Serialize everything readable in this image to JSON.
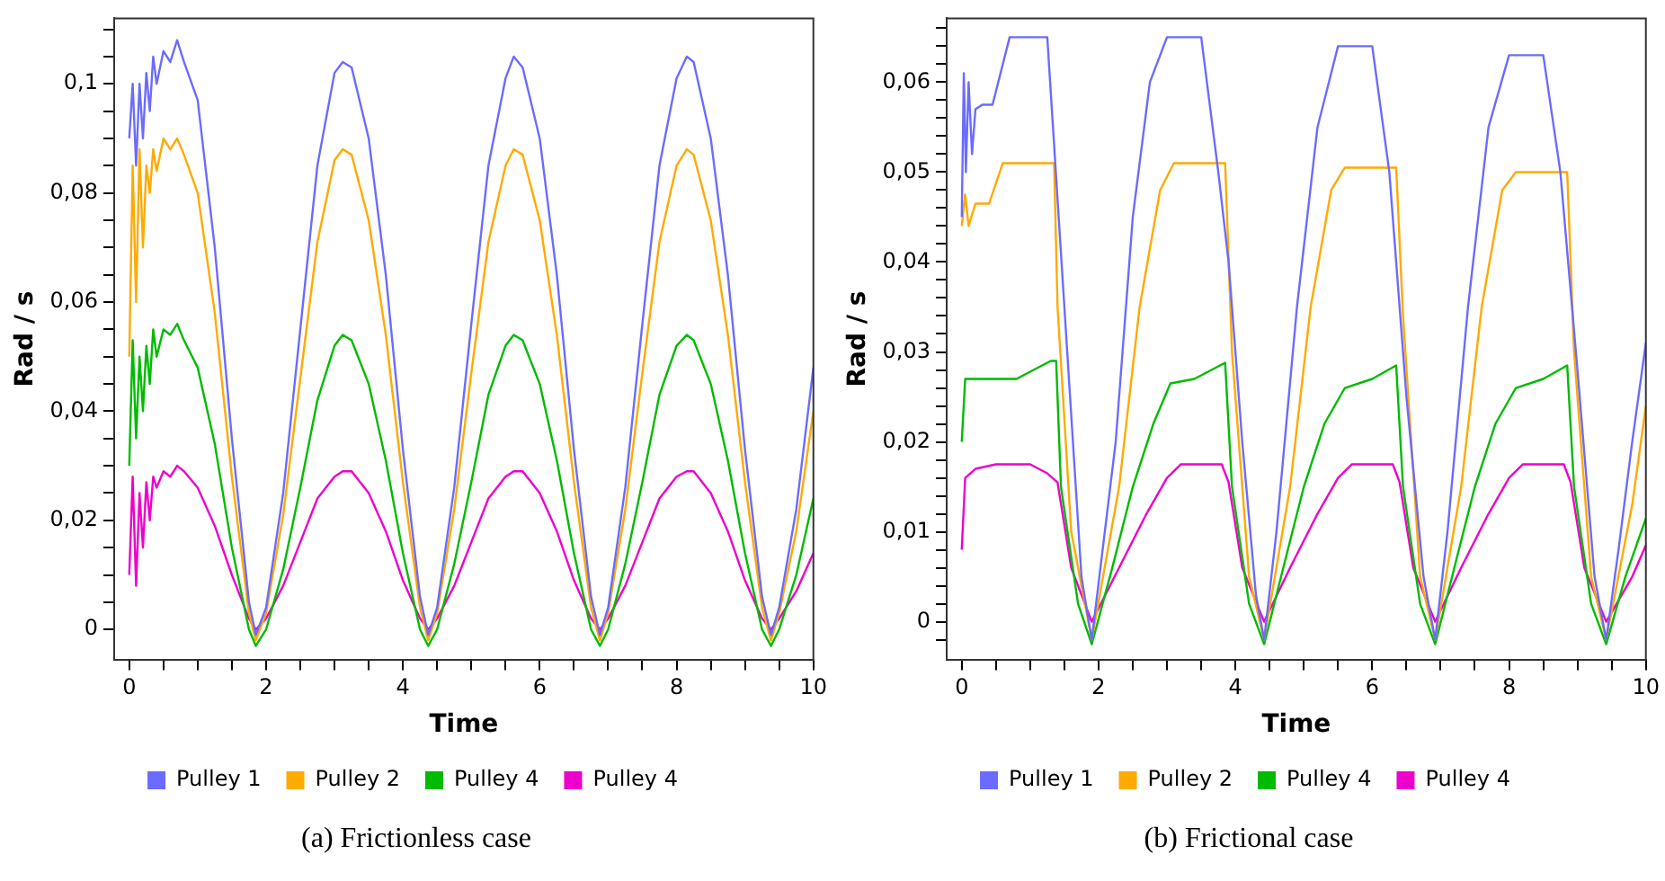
{
  "chart_data": [
    {
      "type": "line",
      "title": "(a) Frictionless case",
      "xlabel": "Time",
      "ylabel": "Rad / s",
      "legend": "bottom",
      "grid": false,
      "marker": "none",
      "line_style": "solid",
      "xlim": [
        -0.22,
        10
      ],
      "ylim": [
        -0.0055,
        0.112
      ],
      "xticks": [
        0,
        {
          "value": 0.5,
          "label": null
        },
        {
          "value": 1,
          "label": null
        },
        {
          "value": 1.5,
          "label": null
        },
        2,
        {
          "value": 2.5,
          "label": null
        },
        {
          "value": 3,
          "label": null
        },
        {
          "value": 3.5,
          "label": null
        },
        4,
        {
          "value": 4.5,
          "label": null
        },
        {
          "value": 5,
          "label": null
        },
        {
          "value": 5.5,
          "label": null
        },
        6,
        {
          "value": 6.5,
          "label": null
        },
        {
          "value": 7,
          "label": null
        },
        {
          "value": 7.5,
          "label": null
        },
        8,
        {
          "value": 8.5,
          "label": null
        },
        {
          "value": 9,
          "label": null
        },
        {
          "value": 9.5,
          "label": null
        },
        10
      ],
      "yticks": [
        {
          "value": 0,
          "label": "0"
        },
        {
          "value": 0.005,
          "label": null
        },
        {
          "value": 0.01,
          "label": null
        },
        {
          "value": 0.015,
          "label": null
        },
        {
          "value": 0.02,
          "label": "0,02"
        },
        {
          "value": 0.025,
          "label": null
        },
        {
          "value": 0.03,
          "label": null
        },
        {
          "value": 0.035,
          "label": null
        },
        {
          "value": 0.04,
          "label": "0,04"
        },
        {
          "value": 0.045,
          "label": null
        },
        {
          "value": 0.05,
          "label": null
        },
        {
          "value": 0.055,
          "label": null
        },
        {
          "value": 0.06,
          "label": "0,06"
        },
        {
          "value": 0.065,
          "label": null
        },
        {
          "value": 0.07,
          "label": null
        },
        {
          "value": 0.075,
          "label": null
        },
        {
          "value": 0.08,
          "label": "0,08"
        },
        {
          "value": 0.085,
          "label": null
        },
        {
          "value": 0.09,
          "label": null
        },
        {
          "value": 0.095,
          "label": null
        },
        {
          "value": 0.1,
          "label": "0,1"
        },
        {
          "value": 0.105,
          "label": null
        },
        {
          "value": 0.11,
          "label": null
        }
      ],
      "series": [
        {
          "name": "Pulley 1",
          "color": "#6b6bff",
          "x": [
            0,
            0.05,
            0.1,
            0.15,
            0.2,
            0.25,
            0.3,
            0.35,
            0.4,
            0.5,
            0.6,
            0.7,
            0.8,
            1.0,
            1.25,
            1.5,
            1.75,
            1.85,
            2.0,
            2.25,
            2.5,
            2.75,
            3.0,
            3.12,
            3.25,
            3.5,
            3.75,
            4.0,
            4.25,
            4.37,
            4.5,
            4.75,
            5.0,
            5.25,
            5.5,
            5.62,
            5.75,
            6.0,
            6.25,
            6.5,
            6.75,
            6.88,
            7.0,
            7.25,
            7.5,
            7.75,
            8.0,
            8.15,
            8.25,
            8.5,
            8.75,
            9.0,
            9.25,
            9.38,
            9.5,
            9.75,
            10
          ],
          "values": [
            0.09,
            0.1,
            0.085,
            0.1,
            0.09,
            0.102,
            0.095,
            0.105,
            0.1,
            0.106,
            0.104,
            0.108,
            0.104,
            0.097,
            0.07,
            0.035,
            0.005,
            -0.001,
            0.004,
            0.025,
            0.055,
            0.085,
            0.102,
            0.104,
            0.103,
            0.09,
            0.065,
            0.033,
            0.006,
            -0.001,
            0.004,
            0.026,
            0.056,
            0.085,
            0.101,
            0.105,
            0.103,
            0.09,
            0.065,
            0.033,
            0.006,
            -0.001,
            0.004,
            0.026,
            0.056,
            0.085,
            0.101,
            0.105,
            0.104,
            0.09,
            0.065,
            0.033,
            0.006,
            -0.001,
            0.004,
            0.022,
            0.048
          ]
        },
        {
          "name": "Pulley 2",
          "color": "#ffaa00",
          "x": [
            0,
            0.05,
            0.1,
            0.15,
            0.2,
            0.25,
            0.3,
            0.35,
            0.4,
            0.5,
            0.6,
            0.7,
            0.8,
            1.0,
            1.25,
            1.5,
            1.75,
            1.85,
            2.0,
            2.25,
            2.5,
            2.75,
            3.0,
            3.12,
            3.25,
            3.5,
            3.75,
            4.0,
            4.25,
            4.37,
            4.5,
            4.75,
            5.0,
            5.25,
            5.5,
            5.62,
            5.75,
            6.0,
            6.25,
            6.5,
            6.75,
            6.88,
            7.0,
            7.25,
            7.5,
            7.75,
            8.0,
            8.15,
            8.25,
            8.5,
            8.75,
            9.0,
            9.25,
            9.38,
            9.5,
            9.75,
            10
          ],
          "values": [
            0.05,
            0.085,
            0.06,
            0.088,
            0.07,
            0.085,
            0.08,
            0.088,
            0.084,
            0.09,
            0.088,
            0.09,
            0.087,
            0.08,
            0.058,
            0.028,
            0.003,
            -0.002,
            0.003,
            0.021,
            0.046,
            0.071,
            0.086,
            0.088,
            0.087,
            0.075,
            0.054,
            0.027,
            0.004,
            -0.002,
            0.003,
            0.022,
            0.047,
            0.071,
            0.085,
            0.088,
            0.087,
            0.075,
            0.054,
            0.027,
            0.004,
            -0.002,
            0.003,
            0.022,
            0.047,
            0.071,
            0.085,
            0.088,
            0.087,
            0.075,
            0.054,
            0.027,
            0.004,
            -0.002,
            0.003,
            0.018,
            0.04
          ]
        },
        {
          "name": "Pulley 4",
          "color": "#00bb00",
          "x": [
            0,
            0.05,
            0.1,
            0.15,
            0.2,
            0.25,
            0.3,
            0.35,
            0.4,
            0.5,
            0.6,
            0.7,
            0.8,
            1.0,
            1.25,
            1.5,
            1.75,
            1.85,
            2.0,
            2.25,
            2.5,
            2.75,
            3.0,
            3.12,
            3.25,
            3.5,
            3.75,
            4.0,
            4.25,
            4.37,
            4.5,
            4.75,
            5.0,
            5.25,
            5.5,
            5.62,
            5.75,
            6.0,
            6.25,
            6.5,
            6.75,
            6.88,
            7.0,
            7.25,
            7.5,
            7.75,
            8.0,
            8.15,
            8.25,
            8.5,
            8.75,
            9.0,
            9.25,
            9.38,
            9.5,
            9.75,
            10
          ],
          "values": [
            0.03,
            0.053,
            0.035,
            0.05,
            0.04,
            0.052,
            0.045,
            0.055,
            0.05,
            0.055,
            0.054,
            0.056,
            0.053,
            0.048,
            0.034,
            0.015,
            0.0,
            -0.003,
            0.0,
            0.011,
            0.026,
            0.042,
            0.052,
            0.054,
            0.053,
            0.045,
            0.031,
            0.014,
            0.0,
            -0.003,
            0.0,
            0.012,
            0.027,
            0.043,
            0.052,
            0.054,
            0.053,
            0.045,
            0.031,
            0.014,
            0.0,
            -0.003,
            0.0,
            0.012,
            0.027,
            0.043,
            0.052,
            0.054,
            0.053,
            0.045,
            0.031,
            0.014,
            0.0,
            -0.003,
            0.0,
            0.01,
            0.024
          ]
        },
        {
          "name": "Pulley 4",
          "color": "#ee00cc",
          "x": [
            0,
            0.05,
            0.1,
            0.15,
            0.2,
            0.25,
            0.3,
            0.35,
            0.4,
            0.5,
            0.6,
            0.7,
            0.8,
            1.0,
            1.25,
            1.5,
            1.75,
            1.85,
            2.0,
            2.25,
            2.5,
            2.75,
            3.0,
            3.12,
            3.25,
            3.5,
            3.75,
            4.0,
            4.25,
            4.37,
            4.5,
            4.75,
            5.0,
            5.25,
            5.5,
            5.62,
            5.75,
            6.0,
            6.25,
            6.5,
            6.75,
            6.88,
            7.0,
            7.25,
            7.5,
            7.75,
            8.0,
            8.15,
            8.25,
            8.5,
            8.75,
            9.0,
            9.25,
            9.38,
            9.5,
            9.75,
            10
          ],
          "values": [
            0.01,
            0.028,
            0.008,
            0.025,
            0.015,
            0.027,
            0.02,
            0.028,
            0.026,
            0.029,
            0.028,
            0.03,
            0.029,
            0.026,
            0.019,
            0.01,
            0.002,
            0.0,
            0.002,
            0.008,
            0.016,
            0.024,
            0.028,
            0.029,
            0.029,
            0.025,
            0.018,
            0.009,
            0.002,
            0.0,
            0.002,
            0.008,
            0.016,
            0.024,
            0.028,
            0.029,
            0.029,
            0.025,
            0.018,
            0.009,
            0.002,
            0.0,
            0.002,
            0.008,
            0.016,
            0.024,
            0.028,
            0.029,
            0.029,
            0.025,
            0.018,
            0.009,
            0.002,
            0.0,
            0.002,
            0.007,
            0.014
          ]
        }
      ]
    },
    {
      "type": "line",
      "title": "(b) Frictional case",
      "xlabel": "Time",
      "ylabel": "Rad / s",
      "legend": "bottom",
      "grid": false,
      "marker": "none",
      "line_style": "solid",
      "xlim": [
        -0.22,
        10
      ],
      "ylim": [
        -0.0042,
        0.0671
      ],
      "xticks": [
        0,
        {
          "value": 0.5,
          "label": null
        },
        {
          "value": 1,
          "label": null
        },
        {
          "value": 1.5,
          "label": null
        },
        2,
        {
          "value": 2.5,
          "label": null
        },
        {
          "value": 3,
          "label": null
        },
        {
          "value": 3.5,
          "label": null
        },
        4,
        {
          "value": 4.5,
          "label": null
        },
        {
          "value": 5,
          "label": null
        },
        {
          "value": 5.5,
          "label": null
        },
        6,
        {
          "value": 6.5,
          "label": null
        },
        {
          "value": 7,
          "label": null
        },
        {
          "value": 7.5,
          "label": null
        },
        8,
        {
          "value": 8.5,
          "label": null
        },
        {
          "value": 9,
          "label": null
        },
        {
          "value": 9.5,
          "label": null
        },
        10
      ],
      "yticks": [
        {
          "value": -0.002,
          "label": null
        },
        {
          "value": 0,
          "label": "0"
        },
        {
          "value": 0.002,
          "label": null
        },
        {
          "value": 0.004,
          "label": null
        },
        {
          "value": 0.006,
          "label": null
        },
        {
          "value": 0.008,
          "label": null
        },
        {
          "value": 0.01,
          "label": "0,01"
        },
        {
          "value": 0.012,
          "label": null
        },
        {
          "value": 0.014,
          "label": null
        },
        {
          "value": 0.016,
          "label": null
        },
        {
          "value": 0.018,
          "label": null
        },
        {
          "value": 0.02,
          "label": "0,02"
        },
        {
          "value": 0.022,
          "label": null
        },
        {
          "value": 0.024,
          "label": null
        },
        {
          "value": 0.026,
          "label": null
        },
        {
          "value": 0.028,
          "label": null
        },
        {
          "value": 0.03,
          "label": "0,03"
        },
        {
          "value": 0.032,
          "label": null
        },
        {
          "value": 0.034,
          "label": null
        },
        {
          "value": 0.036,
          "label": null
        },
        {
          "value": 0.038,
          "label": null
        },
        {
          "value": 0.04,
          "label": "0,04"
        },
        {
          "value": 0.042,
          "label": null
        },
        {
          "value": 0.044,
          "label": null
        },
        {
          "value": 0.046,
          "label": null
        },
        {
          "value": 0.048,
          "label": null
        },
        {
          "value": 0.05,
          "label": "0,05"
        },
        {
          "value": 0.052,
          "label": null
        },
        {
          "value": 0.054,
          "label": null
        },
        {
          "value": 0.056,
          "label": null
        },
        {
          "value": 0.058,
          "label": null
        },
        {
          "value": 0.06,
          "label": "0,06"
        },
        {
          "value": 0.062,
          "label": null
        },
        {
          "value": 0.064,
          "label": null
        },
        {
          "value": 0.066,
          "label": null
        }
      ],
      "series": [
        {
          "name": "Pulley 1",
          "color": "#6b6bff",
          "x": [
            0,
            0.03,
            0.06,
            0.1,
            0.15,
            0.2,
            0.3,
            0.45,
            0.7,
            1.0,
            1.25,
            1.5,
            1.75,
            1.9,
            2.25,
            2.5,
            2.75,
            3.0,
            3.5,
            3.75,
            3.9,
            4.1,
            4.3,
            4.42,
            4.6,
            4.9,
            5.2,
            5.5,
            6.0,
            6.25,
            6.5,
            6.75,
            6.92,
            7.1,
            7.4,
            7.7,
            8.0,
            8.5,
            8.75,
            9.0,
            9.25,
            9.42,
            9.6,
            9.8,
            10
          ],
          "values": [
            0.045,
            0.061,
            0.05,
            0.06,
            0.052,
            0.057,
            0.0575,
            0.0575,
            0.065,
            0.065,
            0.065,
            0.035,
            0.005,
            -0.002,
            0.02,
            0.045,
            0.06,
            0.065,
            0.065,
            0.05,
            0.04,
            0.02,
            0.003,
            -0.002,
            0.01,
            0.035,
            0.055,
            0.064,
            0.064,
            0.05,
            0.025,
            0.005,
            -0.002,
            0.01,
            0.035,
            0.055,
            0.063,
            0.063,
            0.05,
            0.028,
            0.005,
            -0.002,
            0.008,
            0.02,
            0.031
          ]
        },
        {
          "name": "Pulley 2",
          "color": "#ffaa00",
          "x": [
            0,
            0.05,
            0.1,
            0.2,
            0.4,
            0.6,
            1.35,
            1.4,
            1.6,
            1.9,
            2.3,
            2.6,
            2.9,
            3.1,
            3.85,
            3.95,
            4.2,
            4.42,
            4.8,
            5.1,
            5.4,
            5.6,
            6.35,
            6.45,
            6.7,
            6.92,
            7.3,
            7.6,
            7.9,
            8.1,
            8.85,
            8.95,
            9.2,
            9.42,
            9.8,
            10
          ],
          "values": [
            0.044,
            0.0475,
            0.044,
            0.0465,
            0.0465,
            0.051,
            0.051,
            0.035,
            0.01,
            -0.002,
            0.015,
            0.035,
            0.048,
            0.051,
            0.051,
            0.03,
            0.005,
            -0.002,
            0.015,
            0.035,
            0.048,
            0.0505,
            0.0505,
            0.034,
            0.005,
            -0.002,
            0.015,
            0.035,
            0.048,
            0.05,
            0.05,
            0.03,
            0.005,
            -0.002,
            0.013,
            0.024
          ]
        },
        {
          "name": "Pulley 4",
          "color": "#00bb00",
          "x": [
            0,
            0.05,
            0.8,
            1.3,
            1.38,
            1.45,
            1.7,
            1.9,
            2.2,
            2.5,
            2.8,
            3.05,
            3.4,
            3.85,
            3.95,
            4.2,
            4.42,
            4.7,
            5.0,
            5.3,
            5.6,
            6.0,
            6.35,
            6.45,
            6.7,
            6.92,
            7.2,
            7.5,
            7.8,
            8.1,
            8.5,
            8.85,
            8.95,
            9.2,
            9.42,
            9.7,
            10
          ],
          "values": [
            0.02,
            0.027,
            0.027,
            0.029,
            0.029,
            0.015,
            0.002,
            -0.0025,
            0.006,
            0.015,
            0.022,
            0.0265,
            0.027,
            0.0288,
            0.015,
            0.002,
            -0.0025,
            0.006,
            0.015,
            0.022,
            0.026,
            0.027,
            0.0285,
            0.015,
            0.002,
            -0.0025,
            0.006,
            0.015,
            0.022,
            0.026,
            0.027,
            0.0285,
            0.015,
            0.002,
            -0.0025,
            0.005,
            0.0115
          ]
        },
        {
          "name": "Pulley 4",
          "color": "#ee00cc",
          "x": [
            0,
            0.05,
            0.2,
            0.5,
            1.0,
            1.25,
            1.4,
            1.6,
            1.9,
            2.3,
            2.7,
            3.0,
            3.2,
            3.8,
            3.9,
            4.1,
            4.42,
            4.8,
            5.2,
            5.5,
            5.7,
            6.3,
            6.4,
            6.6,
            6.92,
            7.3,
            7.7,
            8.0,
            8.2,
            8.8,
            8.9,
            9.1,
            9.42,
            9.8,
            10
          ],
          "values": [
            0.008,
            0.016,
            0.017,
            0.0175,
            0.0175,
            0.0165,
            0.0155,
            0.006,
            0,
            0.006,
            0.012,
            0.016,
            0.0175,
            0.0175,
            0.0155,
            0.006,
            0,
            0.006,
            0.012,
            0.016,
            0.0175,
            0.0175,
            0.0155,
            0.006,
            0,
            0.006,
            0.012,
            0.016,
            0.0175,
            0.0175,
            0.0155,
            0.006,
            0,
            0.005,
            0.0085
          ]
        }
      ]
    }
  ]
}
